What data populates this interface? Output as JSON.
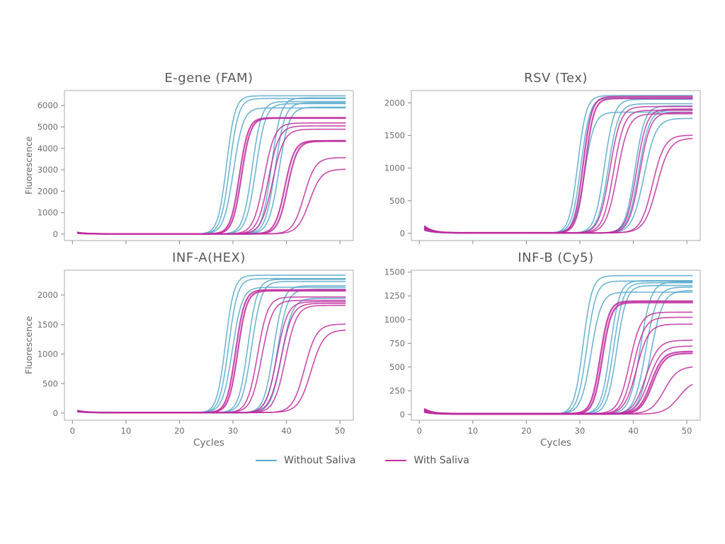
{
  "figure": {
    "background": "#ffffff"
  },
  "colors": {
    "without_saliva": "#55A8CA",
    "with_saliva": "#C02C9E"
  },
  "axis_style": {
    "tick_text_color": "#6e6e6e",
    "title_color": "#595959",
    "spine_color": "#ababab",
    "tick_mark_color": "#8a8a8a"
  },
  "legend": {
    "position": "bottom-center",
    "items": [
      {
        "label": "Without Saliva",
        "group": "without_saliva"
      },
      {
        "label": "With Saliva",
        "group": "with_saliva"
      }
    ]
  },
  "chart_data": [
    {
      "type": "line",
      "title": "E-gene (FAM)",
      "ylabel": "Fluorescence",
      "show_ylabel": true,
      "xlabel": "Cycles",
      "show_xlabel": false,
      "xlim": [
        -1.5,
        52.5
      ],
      "ylim": [
        -300,
        6700
      ],
      "x_ticks": [
        0,
        10,
        20,
        30,
        40,
        50
      ],
      "y_ticks": [
        0,
        1000,
        2000,
        3000,
        4000,
        5000,
        6000
      ],
      "x_start": 1,
      "x_end": 51,
      "grid": false,
      "model": "y = baseline + start_bump*exp(-(x-1)/1.6) + plateau/(1+exp(-steepness*(x-midpoint)))",
      "baseline": 8,
      "start_bump": 60,
      "curves": [
        {
          "group": "without_saliva",
          "midpoint": 28.8,
          "steepness": 1.25,
          "plateau": 6450
        },
        {
          "group": "without_saliva",
          "midpoint": 29.4,
          "steepness": 1.2,
          "plateau": 6320
        },
        {
          "group": "without_saliva",
          "midpoint": 30.1,
          "steepness": 1.1,
          "plateau": 5880
        },
        {
          "group": "without_saliva",
          "midpoint": 33.6,
          "steepness": 1.15,
          "plateau": 6180
        },
        {
          "group": "without_saliva",
          "midpoint": 34.3,
          "steepness": 1.1,
          "plateau": 6080
        },
        {
          "group": "without_saliva",
          "midpoint": 37.2,
          "steepness": 1.15,
          "plateau": 6350
        },
        {
          "group": "without_saliva",
          "midpoint": 37.9,
          "steepness": 1.1,
          "plateau": 6120
        },
        {
          "group": "without_saliva",
          "midpoint": 38.6,
          "steepness": 1.05,
          "plateau": 5920
        },
        {
          "group": "with_saliva",
          "midpoint": 31.2,
          "steepness": 1.2,
          "plateau": 5420,
          "lw": 2.2
        },
        {
          "group": "with_saliva",
          "midpoint": 31.6,
          "steepness": 1.2,
          "plateau": 5400,
          "lw": 2.2
        },
        {
          "group": "with_saliva",
          "midpoint": 35.8,
          "steepness": 1.0,
          "plateau": 5180
        },
        {
          "group": "with_saliva",
          "midpoint": 36.6,
          "steepness": 1.0,
          "plateau": 5040
        },
        {
          "group": "with_saliva",
          "midpoint": 37.4,
          "steepness": 0.95,
          "plateau": 4890
        },
        {
          "group": "with_saliva",
          "midpoint": 39.7,
          "steepness": 1.1,
          "plateau": 4350,
          "lw": 2.2
        },
        {
          "group": "with_saliva",
          "midpoint": 40.2,
          "steepness": 1.1,
          "plateau": 4330,
          "lw": 2.2
        },
        {
          "group": "with_saliva",
          "midpoint": 43.3,
          "steepness": 0.95,
          "plateau": 3560
        },
        {
          "group": "with_saliva",
          "midpoint": 44.3,
          "steepness": 0.9,
          "plateau": 3020
        }
      ]
    },
    {
      "type": "line",
      "title": "RSV (Tex)",
      "ylabel": "Fluorescence",
      "show_ylabel": false,
      "xlabel": "Cycles",
      "show_xlabel": false,
      "xlim": [
        -1.5,
        52.5
      ],
      "ylim": [
        -110,
        2190
      ],
      "x_ticks": [
        0,
        10,
        20,
        30,
        40,
        50
      ],
      "y_ticks": [
        0,
        500,
        1000,
        1500,
        2000
      ],
      "x_start": 1,
      "x_end": 51,
      "grid": false,
      "model": "y = baseline + start_bump*exp(-(x-1)/1.6) + plateau/(1+exp(-steepness*(x-midpoint)))",
      "baseline": 6,
      "start_bump": 85,
      "curves": [
        {
          "group": "without_saliva",
          "midpoint": 29.6,
          "steepness": 1.25,
          "plateau": 2110
        },
        {
          "group": "without_saliva",
          "midpoint": 30.2,
          "steepness": 1.2,
          "plateau": 2070
        },
        {
          "group": "without_saliva",
          "midpoint": 30.9,
          "steepness": 1.1,
          "plateau": 1850
        },
        {
          "group": "without_saliva",
          "midpoint": 34.6,
          "steepness": 1.1,
          "plateau": 2050
        },
        {
          "group": "without_saliva",
          "midpoint": 35.3,
          "steepness": 1.05,
          "plateau": 1980
        },
        {
          "group": "without_saliva",
          "midpoint": 40.3,
          "steepness": 1.1,
          "plateau": 1950
        },
        {
          "group": "without_saliva",
          "midpoint": 41.0,
          "steepness": 1.0,
          "plateau": 1890
        },
        {
          "group": "without_saliva",
          "midpoint": 42.0,
          "steepness": 0.9,
          "plateau": 1760
        },
        {
          "group": "with_saliva",
          "midpoint": 30.6,
          "steepness": 1.25,
          "plateau": 2090,
          "lw": 2.2
        },
        {
          "group": "with_saliva",
          "midpoint": 31.0,
          "steepness": 1.25,
          "plateau": 2060,
          "lw": 2.2
        },
        {
          "group": "with_saliva",
          "midpoint": 35.6,
          "steepness": 1.0,
          "plateau": 1940
        },
        {
          "group": "with_saliva",
          "midpoint": 36.3,
          "steepness": 1.0,
          "plateau": 1880
        },
        {
          "group": "with_saliva",
          "midpoint": 37.0,
          "steepness": 0.95,
          "plateau": 1830
        },
        {
          "group": "with_saliva",
          "midpoint": 40.6,
          "steepness": 1.05,
          "plateau": 1900
        },
        {
          "group": "with_saliva",
          "midpoint": 41.2,
          "steepness": 1.0,
          "plateau": 1850
        },
        {
          "group": "with_saliva",
          "midpoint": 43.6,
          "steepness": 0.9,
          "plateau": 1500
        },
        {
          "group": "with_saliva",
          "midpoint": 44.4,
          "steepness": 0.85,
          "plateau": 1450
        }
      ]
    },
    {
      "type": "line",
      "title": "INF-A(HEX)",
      "ylabel": "Fluorescence",
      "show_ylabel": true,
      "xlabel": "Cycles",
      "show_xlabel": true,
      "xlim": [
        -1.5,
        52.5
      ],
      "ylim": [
        -120,
        2420
      ],
      "x_ticks": [
        0,
        10,
        20,
        30,
        40,
        50
      ],
      "y_ticks": [
        0,
        500,
        1000,
        1500,
        2000
      ],
      "x_start": 1,
      "x_end": 51,
      "grid": false,
      "model": "y = baseline + start_bump*exp(-(x-1)/1.6) + plateau/(1+exp(-steepness*(x-midpoint)))",
      "baseline": 8,
      "start_bump": 30,
      "curves": [
        {
          "group": "without_saliva",
          "midpoint": 28.6,
          "steepness": 1.25,
          "plateau": 2330
        },
        {
          "group": "without_saliva",
          "midpoint": 29.2,
          "steepness": 1.2,
          "plateau": 2270
        },
        {
          "group": "without_saliva",
          "midpoint": 29.9,
          "steepness": 1.1,
          "plateau": 2120
        },
        {
          "group": "without_saliva",
          "midpoint": 32.8,
          "steepness": 1.15,
          "plateau": 2260
        },
        {
          "group": "without_saliva",
          "midpoint": 33.5,
          "steepness": 1.1,
          "plateau": 2220
        },
        {
          "group": "without_saliva",
          "midpoint": 37.6,
          "steepness": 1.1,
          "plateau": 2150
        },
        {
          "group": "without_saliva",
          "midpoint": 38.3,
          "steepness": 1.05,
          "plateau": 2090
        },
        {
          "group": "without_saliva",
          "midpoint": 39.1,
          "steepness": 1.0,
          "plateau": 1940
        },
        {
          "group": "with_saliva",
          "midpoint": 30.5,
          "steepness": 1.2,
          "plateau": 2080,
          "lw": 2.2
        },
        {
          "group": "with_saliva",
          "midpoint": 30.9,
          "steepness": 1.2,
          "plateau": 2060,
          "lw": 2.2
        },
        {
          "group": "with_saliva",
          "midpoint": 34.6,
          "steepness": 1.05,
          "plateau": 1960
        },
        {
          "group": "with_saliva",
          "midpoint": 35.4,
          "steepness": 1.0,
          "plateau": 1900
        },
        {
          "group": "with_saliva",
          "midpoint": 38.2,
          "steepness": 1.0,
          "plateau": 1880
        },
        {
          "group": "with_saliva",
          "midpoint": 39.0,
          "steepness": 0.95,
          "plateau": 1850
        },
        {
          "group": "with_saliva",
          "midpoint": 39.8,
          "steepness": 0.95,
          "plateau": 1820
        },
        {
          "group": "with_saliva",
          "midpoint": 43.4,
          "steepness": 0.9,
          "plateau": 1500
        },
        {
          "group": "with_saliva",
          "midpoint": 44.6,
          "steepness": 0.85,
          "plateau": 1400
        }
      ]
    },
    {
      "type": "line",
      "title": "INF-B (Cy5)",
      "ylabel": "Fluorescence",
      "show_ylabel": false,
      "xlabel": "Cycles",
      "show_xlabel": true,
      "xlim": [
        -1.5,
        52.5
      ],
      "ylim": [
        -60,
        1520
      ],
      "x_ticks": [
        0,
        10,
        20,
        30,
        40,
        50
      ],
      "y_ticks": [
        0,
        250,
        500,
        750,
        1000,
        1250,
        1500
      ],
      "x_start": 1,
      "x_end": 51,
      "grid": false,
      "model": "y = baseline + start_bump*exp(-(x-1)/1.6) + plateau/(1+exp(-steepness*(x-midpoint)))",
      "baseline": 6,
      "start_bump": 40,
      "curves": [
        {
          "group": "without_saliva",
          "midpoint": 30.6,
          "steepness": 1.2,
          "plateau": 1460
        },
        {
          "group": "without_saliva",
          "midpoint": 31.3,
          "steepness": 1.15,
          "plateau": 1400
        },
        {
          "group": "without_saliva",
          "midpoint": 32.1,
          "steepness": 1.05,
          "plateau": 1280
        },
        {
          "group": "without_saliva",
          "midpoint": 35.7,
          "steepness": 1.15,
          "plateau": 1405
        },
        {
          "group": "without_saliva",
          "midpoint": 36.3,
          "steepness": 1.1,
          "plateau": 1380
        },
        {
          "group": "without_saliva",
          "midpoint": 36.9,
          "steepness": 1.1,
          "plateau": 1355
        },
        {
          "group": "without_saliva",
          "midpoint": 41.3,
          "steepness": 1.0,
          "plateau": 1390
        },
        {
          "group": "without_saliva",
          "midpoint": 42.3,
          "steepness": 0.95,
          "plateau": 1340
        },
        {
          "group": "without_saliva",
          "midpoint": 43.3,
          "steepness": 0.9,
          "plateau": 1300
        },
        {
          "group": "with_saliva",
          "midpoint": 33.8,
          "steepness": 1.2,
          "plateau": 1185,
          "lw": 2.4
        },
        {
          "group": "with_saliva",
          "midpoint": 34.2,
          "steepness": 1.2,
          "plateau": 1175,
          "lw": 2.4
        },
        {
          "group": "with_saliva",
          "midpoint": 39.3,
          "steepness": 0.95,
          "plateau": 1070
        },
        {
          "group": "with_saliva",
          "midpoint": 40.0,
          "steepness": 0.95,
          "plateau": 1020
        },
        {
          "group": "with_saliva",
          "midpoint": 40.6,
          "steepness": 0.9,
          "plateau": 945
        },
        {
          "group": "with_saliva",
          "midpoint": 42.3,
          "steepness": 0.85,
          "plateau": 780
        },
        {
          "group": "with_saliva",
          "midpoint": 42.9,
          "steepness": 0.85,
          "plateau": 715
        },
        {
          "group": "with_saliva",
          "midpoint": 43.3,
          "steepness": 0.9,
          "plateau": 655,
          "lw": 2.2
        },
        {
          "group": "with_saliva",
          "midpoint": 43.6,
          "steepness": 0.9,
          "plateau": 640,
          "lw": 2.2
        },
        {
          "group": "with_saliva",
          "midpoint": 45.8,
          "steepness": 0.8,
          "plateau": 500
        },
        {
          "group": "with_saliva",
          "midpoint": 48.5,
          "steepness": 0.75,
          "plateau": 360
        }
      ]
    }
  ]
}
